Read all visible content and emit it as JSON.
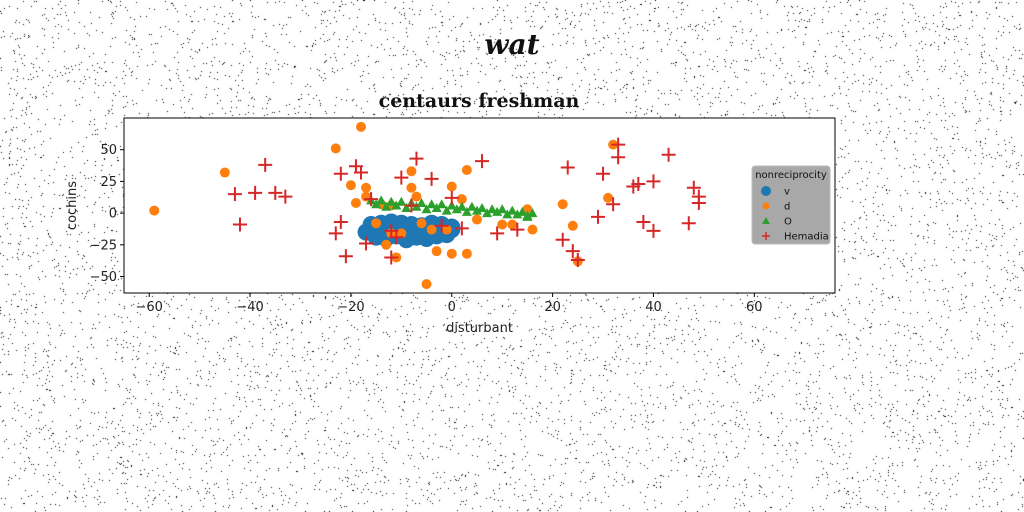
{
  "figure": {
    "suptitle": "wat"
  },
  "chart_data": {
    "type": "scatter",
    "title": "centaurs freshman",
    "xlabel": "disturbant",
    "ylabel": "cochins",
    "xlim": [
      -65,
      76
    ],
    "ylim": [
      -63,
      75
    ],
    "xticks": [
      -60,
      -40,
      -20,
      0,
      20,
      40,
      60
    ],
    "yticks": [
      -50,
      -25,
      0,
      25,
      50
    ],
    "grid": false,
    "legend": {
      "title": "nonreciprocity",
      "position": "right",
      "background": "#999999"
    },
    "series": [
      {
        "name": "v",
        "marker": "circle-large",
        "color": "#1f77b4",
        "x": [
          -17,
          -16,
          -15,
          -14,
          -13,
          -12,
          -11,
          -10,
          -9,
          -8,
          -7,
          -6,
          -5,
          -4,
          -3,
          -2,
          -1,
          0,
          -16,
          -14,
          -12,
          -10,
          -8,
          -6,
          -4,
          -2,
          0,
          -15,
          -13,
          -11,
          -9,
          -7,
          -5,
          -3,
          -1,
          -16,
          -14,
          -12,
          -10,
          -8,
          -6,
          -4,
          -2
        ],
        "y": [
          -15,
          -13,
          -16,
          -12,
          -17,
          -14,
          -11,
          -16,
          -13,
          -18,
          -12,
          -15,
          -11,
          -17,
          -14,
          -12,
          -16,
          -13,
          -9,
          -8,
          -7,
          -8,
          -9,
          -10,
          -8,
          -9,
          -11,
          -19,
          -20,
          -18,
          -21,
          -19,
          -20,
          -18,
          -17,
          -11,
          -10,
          -12,
          -10,
          -11,
          -12,
          -10,
          -11
        ]
      },
      {
        "name": "d",
        "marker": "circle",
        "color": "#ff7f0e",
        "x": [
          -59,
          -45,
          -18,
          -23,
          -20,
          -19,
          -17,
          -15,
          -8,
          -11,
          -13,
          -10,
          -12,
          -6,
          -4,
          -5,
          -3,
          0,
          0,
          -1,
          2,
          3,
          5,
          10,
          12,
          15,
          16,
          22,
          24,
          25,
          31,
          32,
          -12,
          -17,
          -7,
          -14,
          3,
          -8
        ],
        "y": [
          2,
          32,
          68,
          51,
          22,
          8,
          13,
          -8,
          33,
          -35,
          -25,
          -16,
          6,
          -8,
          -13,
          -56,
          -30,
          21,
          -32,
          -13,
          11,
          34,
          -5,
          -9,
          -9,
          3,
          -13,
          7,
          -10,
          -38,
          12,
          54,
          -16,
          20,
          13,
          7,
          -32,
          20
        ]
      },
      {
        "name": "O",
        "marker": "triangle",
        "color": "#2ca02c",
        "x": [
          -16,
          -14,
          -12,
          -10,
          -8,
          -6,
          -4,
          -2,
          0,
          2,
          4,
          6,
          8,
          10,
          12,
          14,
          16,
          -15,
          -11,
          -7,
          -3,
          1,
          5,
          9,
          13,
          15,
          -13,
          -9,
          -5,
          -1,
          3,
          7,
          11,
          15
        ],
        "y": [
          10,
          10,
          9,
          9,
          8,
          8,
          7,
          7,
          6,
          5,
          5,
          4,
          3,
          3,
          2,
          1,
          0,
          7,
          6,
          5,
          4,
          3,
          2,
          1,
          -1,
          -2,
          5,
          4,
          3,
          2,
          1,
          0,
          -1,
          -3
        ]
      },
      {
        "name": "Hemadia",
        "marker": "plus",
        "color": "#d62728",
        "x": [
          -43,
          -42,
          -39,
          -37,
          -35,
          -33,
          -23,
          -22,
          -22,
          -21,
          -19,
          -18,
          -17,
          -16,
          -12,
          -12,
          -11,
          -10,
          -8,
          -7,
          -4,
          -2,
          0,
          2,
          6,
          9,
          13,
          22,
          23,
          24,
          25,
          29,
          30,
          32,
          33,
          33,
          36,
          37,
          38,
          40,
          40,
          43,
          47,
          48,
          49,
          49
        ],
        "y": [
          15,
          -9,
          16,
          38,
          16,
          13,
          -16,
          -7,
          31,
          -34,
          37,
          32,
          -24,
          11,
          -35,
          -14,
          -19,
          28,
          6,
          43,
          27,
          -10,
          12,
          -12,
          41,
          -16,
          -13,
          -21,
          36,
          -30,
          -37,
          -3,
          31,
          7,
          54,
          44,
          21,
          23,
          -7,
          25,
          -14,
          46,
          -8,
          20,
          8,
          13
        ]
      }
    ]
  }
}
